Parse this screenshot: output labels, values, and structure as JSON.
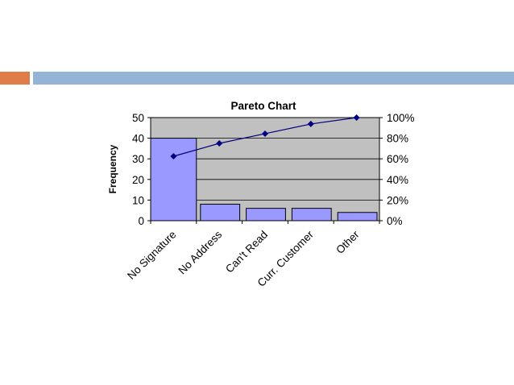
{
  "slide": {
    "accent_color": "#e07b4a",
    "bar_color": "#95b3d7"
  },
  "chart_data": {
    "type": "bar",
    "title": "Pareto Chart",
    "ylabel": "Frequency",
    "y2label": "",
    "categories": [
      "No Signature",
      "No Address",
      "Can't Read",
      "Curr. Customer",
      "Other"
    ],
    "series": [
      {
        "type": "bar",
        "values": [
          40,
          8,
          6,
          6,
          4
        ],
        "color": "#9999ff"
      },
      {
        "type": "line",
        "axis": "right",
        "values": [
          62.5,
          75,
          84.4,
          93.8,
          100
        ],
        "color": "#000080"
      }
    ],
    "ylim": [
      0,
      50
    ],
    "yticks": [
      0,
      10,
      20,
      30,
      40,
      50
    ],
    "y2lim": [
      0,
      100
    ],
    "y2ticks": [
      "0%",
      "20%",
      "40%",
      "60%",
      "80%",
      "100%"
    ],
    "y2tick_values": [
      0,
      20,
      40,
      60,
      80,
      100
    ],
    "plot_background": "#c0c0c0",
    "grid": true,
    "legend": "none"
  }
}
